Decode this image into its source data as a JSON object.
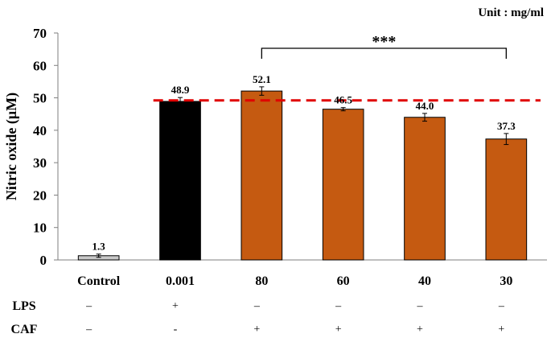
{
  "unit_note": "Unit : mg/ml",
  "chart_data": {
    "type": "bar",
    "ylabel": "Nitric oxide (μM)",
    "ylim": [
      0,
      70
    ],
    "yticks": [
      0,
      10,
      20,
      30,
      40,
      50,
      60,
      70
    ],
    "categories": [
      "Control",
      "0.001",
      "80",
      "60",
      "40",
      "30"
    ],
    "values": [
      1.3,
      48.9,
      52.1,
      46.5,
      44.0,
      37.3
    ],
    "value_labels": [
      "1.3",
      "48.9",
      "52.1",
      "46.5",
      "44.0",
      "37.3"
    ],
    "errors": [
      0.5,
      1.2,
      1.3,
      0.5,
      1.2,
      1.7
    ],
    "bar_colors": [
      "#c8c8c8",
      "#000000",
      "#c55a11",
      "#c55a11",
      "#c55a11",
      "#c55a11"
    ],
    "reference_line": {
      "value": 49.2,
      "color": "#e00000",
      "style": "dashed"
    },
    "significance": {
      "label": "***",
      "from_category": 2,
      "to_category": 5
    },
    "treatment_rows": [
      {
        "label": "LPS",
        "marks": [
          "–",
          "+",
          "–",
          "–",
          "–",
          "–"
        ]
      },
      {
        "label": "CAF",
        "marks": [
          "–",
          "-",
          "+",
          "+",
          "+",
          "+"
        ]
      }
    ]
  }
}
